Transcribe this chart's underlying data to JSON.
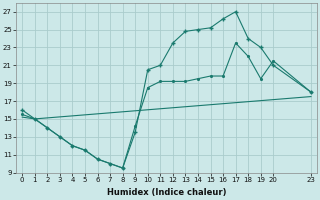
{
  "xlabel": "Humidex (Indice chaleur)",
  "bg_color": "#cce8e8",
  "grid_color": "#aacccc",
  "line_color": "#1a7a6e",
  "xlim": [
    -0.5,
    23.5
  ],
  "ylim": [
    9,
    28
  ],
  "xtick_vals": [
    0,
    1,
    2,
    3,
    4,
    5,
    6,
    7,
    8,
    9,
    10,
    11,
    12,
    13,
    14,
    15,
    16,
    17,
    18,
    19,
    20,
    23
  ],
  "ytick_vals": [
    9,
    11,
    13,
    15,
    17,
    19,
    21,
    23,
    25,
    27
  ],
  "line1_x": [
    0,
    1,
    2,
    3,
    4,
    5,
    6,
    7,
    8,
    9,
    10,
    11,
    12,
    13,
    14,
    15,
    16,
    17,
    18,
    19,
    20,
    23
  ],
  "line1_y": [
    16,
    15,
    14,
    13,
    12,
    11.5,
    10.5,
    10,
    9.5,
    13.5,
    20.5,
    21,
    23.5,
    24.8,
    25,
    25.2,
    26.2,
    27,
    24,
    23,
    21,
    18
  ],
  "line2_x": [
    0,
    1,
    2,
    3,
    4,
    5,
    6,
    7,
    8,
    9,
    10,
    11,
    12,
    13,
    14,
    15,
    16,
    17,
    18,
    19,
    20,
    23
  ],
  "line2_y": [
    15.5,
    15,
    14,
    13,
    12,
    11.5,
    10.5,
    10,
    9.5,
    14.2,
    18.5,
    19.2,
    19.2,
    19.2,
    19.5,
    19.8,
    19.8,
    23.5,
    22.0,
    19.5,
    21.5,
    18
  ],
  "line3_x": [
    0,
    1,
    23
  ],
  "line3_y": [
    15.2,
    15.0,
    17.5
  ]
}
